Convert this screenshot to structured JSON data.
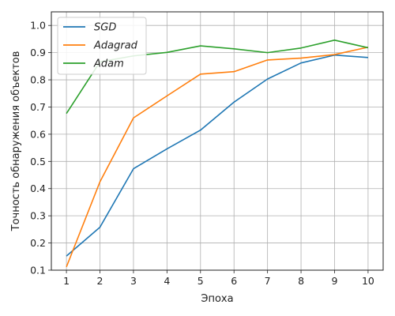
{
  "chart_data": {
    "type": "line",
    "title": "",
    "xlabel": "Эпоха",
    "ylabel": "Точность обнаружения объектов",
    "x": [
      1,
      2,
      3,
      4,
      5,
      6,
      7,
      8,
      9,
      10
    ],
    "xlim": [
      0.55,
      10.45
    ],
    "ylim": [
      0.1,
      1.05
    ],
    "xticks": [
      "1",
      "2",
      "3",
      "4",
      "5",
      "6",
      "7",
      "8",
      "9",
      "10"
    ],
    "yticks": [
      "0.1",
      "0.2",
      "0.3",
      "0.4",
      "0.5",
      "0.6",
      "0.7",
      "0.8",
      "0.9",
      "1.0"
    ],
    "ytick_values": [
      0.1,
      0.2,
      0.3,
      0.4,
      0.5,
      0.6,
      0.7,
      0.8,
      0.9,
      1.0
    ],
    "grid": true,
    "legend_position": "top-left",
    "series": [
      {
        "name": "SGD",
        "color": "#1f77b4",
        "values": [
          0.152,
          0.258,
          0.473,
          0.546,
          0.615,
          0.718,
          0.803,
          0.862,
          0.891,
          0.882
        ]
      },
      {
        "name": "Adagrad",
        "color": "#ff7f0e",
        "values": [
          0.112,
          0.425,
          0.66,
          0.741,
          0.821,
          0.83,
          0.873,
          0.88,
          0.893,
          0.92
        ]
      },
      {
        "name": "Adam",
        "color": "#2ca02c",
        "values": [
          0.676,
          0.866,
          0.888,
          0.901,
          0.925,
          0.914,
          0.9,
          0.917,
          0.946,
          0.918
        ]
      }
    ]
  }
}
